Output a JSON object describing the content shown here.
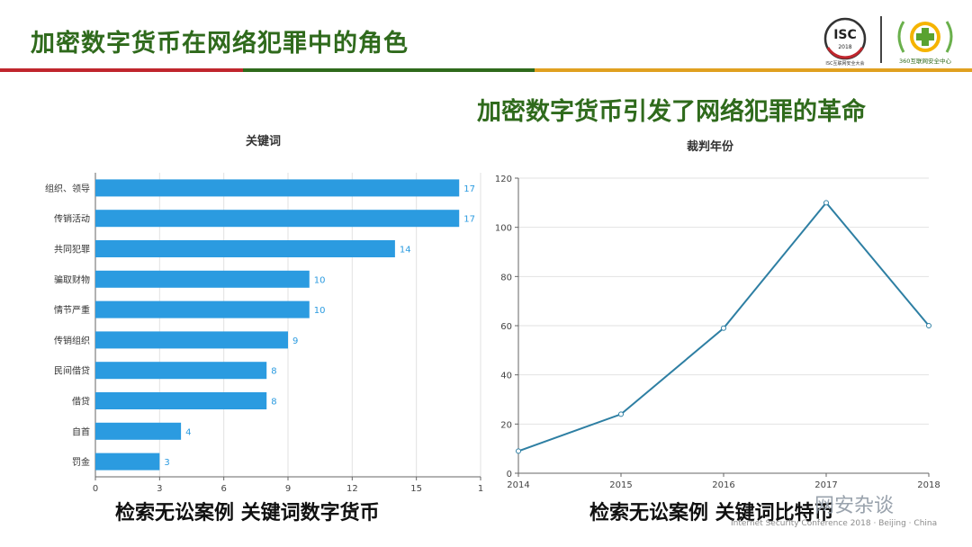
{
  "header": {
    "title": "加密数字货币在网络犯罪中的角色",
    "isc_logo_text": "ISC",
    "isc_logo_year": "2018",
    "isc_logo_sub": "ISC互联网安全大会",
    "logo_360_text": "360互联网安全中心"
  },
  "subtitle": "加密数字货币引发了网络犯罪的革命",
  "captions": {
    "left": "检索无讼案例 关键词数字货币",
    "right": "检索无讼案例 关键词比特币"
  },
  "watermark": "网安杂谈",
  "footer_text": "Internet Security Conference 2018 · Beijing · China",
  "colors": {
    "bar": "#2b9be0",
    "line": "#2e7fa3",
    "green": "#2f6a1c"
  },
  "chart_data": [
    {
      "type": "bar",
      "orientation": "horizontal",
      "title": "关键词",
      "categories": [
        "组织、领导",
        "传销活动",
        "共同犯罪",
        "骗取财物",
        "情节严重",
        "传销组织",
        "民间借贷",
        "借贷",
        "自首",
        "罚金"
      ],
      "values": [
        17,
        17,
        14,
        10,
        10,
        9,
        8,
        8,
        4,
        3
      ],
      "xticks": [
        "0",
        "3",
        "6",
        "9",
        "12",
        "15",
        "1"
      ],
      "xlim": [
        0,
        18
      ],
      "grid": true
    },
    {
      "type": "line",
      "title": "裁判年份",
      "x": [
        "2014",
        "2015",
        "2016",
        "2017",
        "2018"
      ],
      "values": [
        9,
        24,
        59,
        110,
        60
      ],
      "yticks": [
        "0",
        "20",
        "40",
        "60",
        "80",
        "100",
        "120"
      ],
      "ylim": [
        0,
        120
      ],
      "grid": true
    }
  ]
}
